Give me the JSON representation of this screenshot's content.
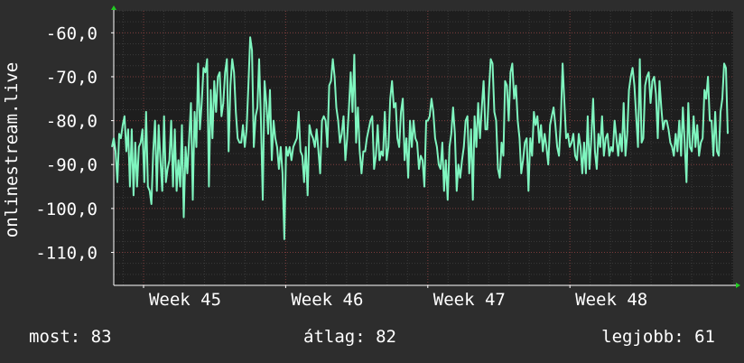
{
  "chart_data": {
    "type": "line",
    "ylabel": "onlinestream.live",
    "y_ticks": [
      -60,
      -70,
      -80,
      -90,
      -100,
      -110
    ],
    "y_tick_labels": [
      "-60,0",
      "-70,0",
      "-80,0",
      "-90,0",
      "-100,0",
      "-110,0"
    ],
    "ylim": [
      -117.5,
      -55
    ],
    "x_ticks": [
      "Week 45",
      "Week 46",
      "Week 47",
      "Week 48"
    ],
    "grid": true,
    "colors": {
      "background": "#2d2d2d",
      "plot_bg": "#1e1e1e",
      "grid_minor": "#3a3a3a",
      "grid_major": "#7a3a3a",
      "line": "#7ff5bf",
      "axis_arrow": "#22cc22"
    },
    "series": [
      {
        "values": [
          -86,
          -84,
          -87,
          -94,
          -83,
          -84,
          -81,
          -79,
          -87,
          -82,
          -95,
          -82,
          -97,
          -85,
          -95,
          -86,
          -85,
          -82,
          -94,
          -78,
          -95,
          -96,
          -99,
          -87,
          -80,
          -96,
          -81,
          -89,
          -96,
          -79,
          -94,
          -91,
          -89,
          -80,
          -95,
          -82,
          -96,
          -89,
          -95,
          -81,
          -102,
          -86,
          -92,
          -84,
          -76,
          -98,
          -78,
          -86,
          -67,
          -82,
          -76,
          -68,
          -69,
          -66,
          -95,
          -73,
          -84,
          -71,
          -78,
          -70,
          -69,
          -79,
          -76,
          -69,
          -66,
          -87,
          -72,
          -66,
          -69,
          -78,
          -84,
          -85,
          -85,
          -81,
          -86,
          -82,
          -72,
          -61,
          -64,
          -86,
          -79,
          -77,
          -66,
          -80,
          -98,
          -71,
          -76,
          -83,
          -73,
          -89,
          -80,
          -84,
          -86,
          -91,
          -86,
          -92,
          -107,
          -86,
          -88,
          -86,
          -89,
          -86,
          -85,
          -84,
          -78,
          -87,
          -88,
          -94,
          -86,
          -97,
          -81,
          -83,
          -84,
          -86,
          -82,
          -87,
          -92,
          -80,
          -79,
          -80,
          -86,
          -72,
          -71,
          -66,
          -70,
          -77,
          -80,
          -85,
          -83,
          -79,
          -89,
          -84,
          -77,
          -69,
          -78,
          -65,
          -85,
          -77,
          -87,
          -92,
          -87,
          -87,
          -84,
          -82,
          -80,
          -79,
          -91,
          -88,
          -81,
          -89,
          -87,
          -88,
          -78,
          -89,
          -86,
          -75,
          -71,
          -77,
          -76,
          -84,
          -86,
          -78,
          -75,
          -89,
          -84,
          -93,
          -80,
          -86,
          -80,
          -84,
          -85,
          -91,
          -88,
          -89,
          -95,
          -80,
          -80,
          -79,
          -75,
          -78,
          -84,
          -86,
          -90,
          -91,
          -85,
          -96,
          -89,
          -98,
          -86,
          -83,
          -77,
          -83,
          -96,
          -90,
          -93,
          -89,
          -86,
          -80,
          -79,
          -92,
          -82,
          -98,
          -79,
          -86,
          -76,
          -84,
          -77,
          -71,
          -82,
          -82,
          -73,
          -66,
          -67,
          -78,
          -80,
          -91,
          -93,
          -85,
          -88,
          -71,
          -72,
          -80,
          -69,
          -67,
          -75,
          -72,
          -80,
          -84,
          -92,
          -89,
          -85,
          -84,
          -96,
          -84,
          -88,
          -78,
          -81,
          -79,
          -85,
          -81,
          -87,
          -83,
          -86,
          -90,
          -81,
          -79,
          -77,
          -81,
          -86,
          -88,
          -80,
          -67,
          -76,
          -84,
          -83,
          -86,
          -85,
          -83,
          -88,
          -89,
          -83,
          -86,
          -92,
          -85,
          -92,
          -79,
          -91,
          -84,
          -75,
          -87,
          -91,
          -83,
          -86,
          -79,
          -88,
          -84,
          -83,
          -88,
          -86,
          -87,
          -80,
          -84,
          -88,
          -83,
          -87,
          -76,
          -88,
          -83,
          -73,
          -70,
          -68,
          -72,
          -79,
          -86,
          -66,
          -85,
          -84,
          -72,
          -70,
          -69,
          -76,
          -71,
          -70,
          -74,
          -84,
          -71,
          -77,
          -82,
          -80,
          -80,
          -82,
          -85,
          -86,
          -88,
          -83,
          -87,
          -80,
          -88,
          -77,
          -85,
          -94,
          -76,
          -86,
          -87,
          -79,
          -86,
          -81,
          -88,
          -85,
          -84,
          -73,
          -75,
          -70,
          -80,
          -80,
          -88,
          -78,
          -87,
          -88,
          -78,
          -75,
          -67,
          -68,
          -83
        ]
      }
    ],
    "stats": {
      "last": 83,
      "avg": 82,
      "best": 61
    }
  },
  "footer": {
    "last": "most: 83",
    "avg": "átlag: 82",
    "best": "legjobb: 61"
  }
}
